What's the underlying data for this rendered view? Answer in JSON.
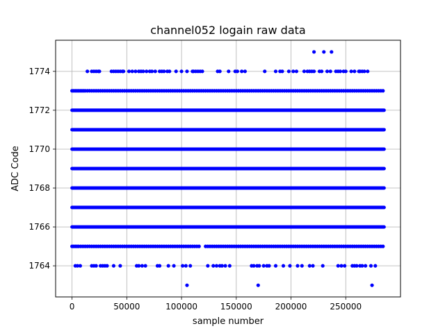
{
  "chart_data": {
    "type": "scatter",
    "title": "channel052 logain raw data",
    "xlabel": "sample number",
    "ylabel": "ADC Code",
    "xlim": [
      -15000,
      300000
    ],
    "ylim": [
      1762.4,
      1775.6
    ],
    "xticks": [
      0,
      50000,
      100000,
      150000,
      200000,
      250000
    ],
    "xtick_labels": [
      "0",
      "50000",
      "100000",
      "150000",
      "200000",
      "250000"
    ],
    "yticks": [
      1764,
      1766,
      1768,
      1770,
      1772,
      1774
    ],
    "ytick_labels": [
      "1764",
      "1766",
      "1768",
      "1770",
      "1772",
      "1774"
    ],
    "grid": true,
    "marker_color": "#0000ff",
    "dense_bands": {
      "y": [
        1766,
        1767,
        1768,
        1769,
        1770,
        1771,
        1772
      ],
      "x_start": 0,
      "x_end": 285000
    },
    "series": [
      {
        "values_by_level": {
          "1773": [
            0,
            1500,
            3000,
            4500,
            6000,
            7500,
            9000,
            10500,
            12000,
            14000,
            16000,
            18000,
            20000,
            22000,
            24000,
            26000,
            28000,
            30000,
            32000,
            34000,
            36000,
            38000,
            40000,
            42000,
            44000,
            46000,
            48000,
            50000,
            52000,
            54000,
            56000,
            58000,
            60000,
            62000,
            64000,
            66000,
            68000,
            70000,
            72000,
            74000,
            76000,
            78000,
            80000,
            82000,
            84000,
            86000,
            88000,
            90000,
            92000,
            94000,
            96000,
            98000,
            100000,
            102000,
            104000,
            106000,
            108000,
            110000,
            112000,
            114000,
            116000,
            118000,
            120000,
            122000,
            124000,
            126000,
            128000,
            130000,
            132000,
            134000,
            136000,
            138000,
            140000,
            142000,
            144000,
            146000,
            148000,
            150000,
            152000,
            154000,
            156000,
            158000,
            160000,
            162000,
            164000,
            166000,
            168000,
            170000,
            172000,
            174000,
            176000,
            178000,
            180000,
            182000,
            184000,
            186000,
            188000,
            190000,
            192000,
            194000,
            196000,
            198000,
            200000,
            202000,
            204000,
            206000,
            208000,
            210000,
            212000,
            214000,
            216000,
            218000,
            220000,
            222000,
            224000,
            226000,
            228000,
            230000,
            232000,
            234000,
            236000,
            238000,
            240000,
            242000,
            244000,
            246000,
            248000,
            250000,
            252000,
            254000,
            256000,
            258000,
            260000,
            262000,
            264000,
            266000,
            268000,
            270000,
            272000,
            274000,
            276000,
            278000,
            280000,
            282000,
            284000
          ],
          "1765": [
            0,
            1500,
            3000,
            4500,
            6000,
            8000,
            10000,
            12000,
            14000,
            16000,
            18000,
            20000,
            22000,
            24000,
            26000,
            28000,
            30000,
            32000,
            34000,
            36000,
            38000,
            40000,
            42000,
            44000,
            46000,
            48000,
            50000,
            52000,
            54000,
            56000,
            58000,
            60000,
            62000,
            64000,
            66000,
            68000,
            70000,
            72000,
            74000,
            76000,
            78000,
            80000,
            82000,
            84000,
            86000,
            88000,
            90000,
            92000,
            94000,
            96000,
            98000,
            100000,
            102000,
            104000,
            106000,
            108000,
            110000,
            112000,
            114000,
            116000,
            122000,
            124000,
            126000,
            128000,
            130000,
            132000,
            134000,
            136000,
            138000,
            140000,
            142000,
            144000,
            146000,
            148000,
            150000,
            152000,
            154000,
            156000,
            158000,
            160000,
            162000,
            164000,
            166000,
            168000,
            170000,
            172000,
            174000,
            176000,
            178000,
            180000,
            182000,
            184000,
            186000,
            188000,
            190000,
            192000,
            194000,
            196000,
            198000,
            200000,
            202000,
            204000,
            206000,
            208000,
            210000,
            212000,
            214000,
            216000,
            218000,
            220000,
            222000,
            224000,
            226000,
            228000,
            230000,
            232000,
            234000,
            236000,
            238000,
            240000,
            242000,
            244000,
            246000,
            248000,
            250000,
            252000,
            254000,
            256000,
            258000,
            260000,
            262000,
            264000,
            266000,
            268000,
            270000,
            272000,
            274000,
            276000,
            278000,
            280000,
            282000,
            284000
          ],
          "1774": [
            14000,
            18000,
            20000,
            22000,
            24000,
            25000,
            36000,
            38000,
            40000,
            42000,
            44000,
            46000,
            47000,
            52000,
            55000,
            58000,
            61000,
            63000,
            65000,
            68000,
            71000,
            73000,
            76000,
            80000,
            82000,
            84000,
            87000,
            89000,
            95000,
            100000,
            105000,
            110000,
            111000,
            113000,
            115000,
            117000,
            119000,
            133000,
            135000,
            143000,
            149000,
            151000,
            155000,
            158000,
            176000,
            186000,
            190000,
            192000,
            198000,
            202000,
            205000,
            212000,
            215000,
            217000,
            219000,
            221000,
            226000,
            228000,
            233000,
            236000,
            241000,
            243000,
            245000,
            248000,
            250000,
            255000,
            258000,
            262000,
            263000,
            265000,
            267000,
            270000
          ],
          "1764": [
            3000,
            5000,
            7500,
            18000,
            20000,
            22000,
            26000,
            28000,
            30000,
            32000,
            38000,
            44000,
            59000,
            61000,
            64000,
            67000,
            78000,
            80000,
            88000,
            93000,
            101000,
            104000,
            108000,
            124000,
            129000,
            132000,
            135000,
            137000,
            140000,
            144000,
            164000,
            166000,
            169000,
            171000,
            175000,
            178000,
            180000,
            186000,
            193000,
            199000,
            206000,
            210000,
            217000,
            229000,
            220000,
            243000,
            246000,
            249000,
            256000,
            258000,
            260000,
            263000,
            265000,
            268000,
            273000,
            277000
          ],
          "1775": [
            221000,
            230000,
            237000
          ],
          "1763": [
            105000,
            170000,
            274000
          ]
        }
      }
    ]
  }
}
